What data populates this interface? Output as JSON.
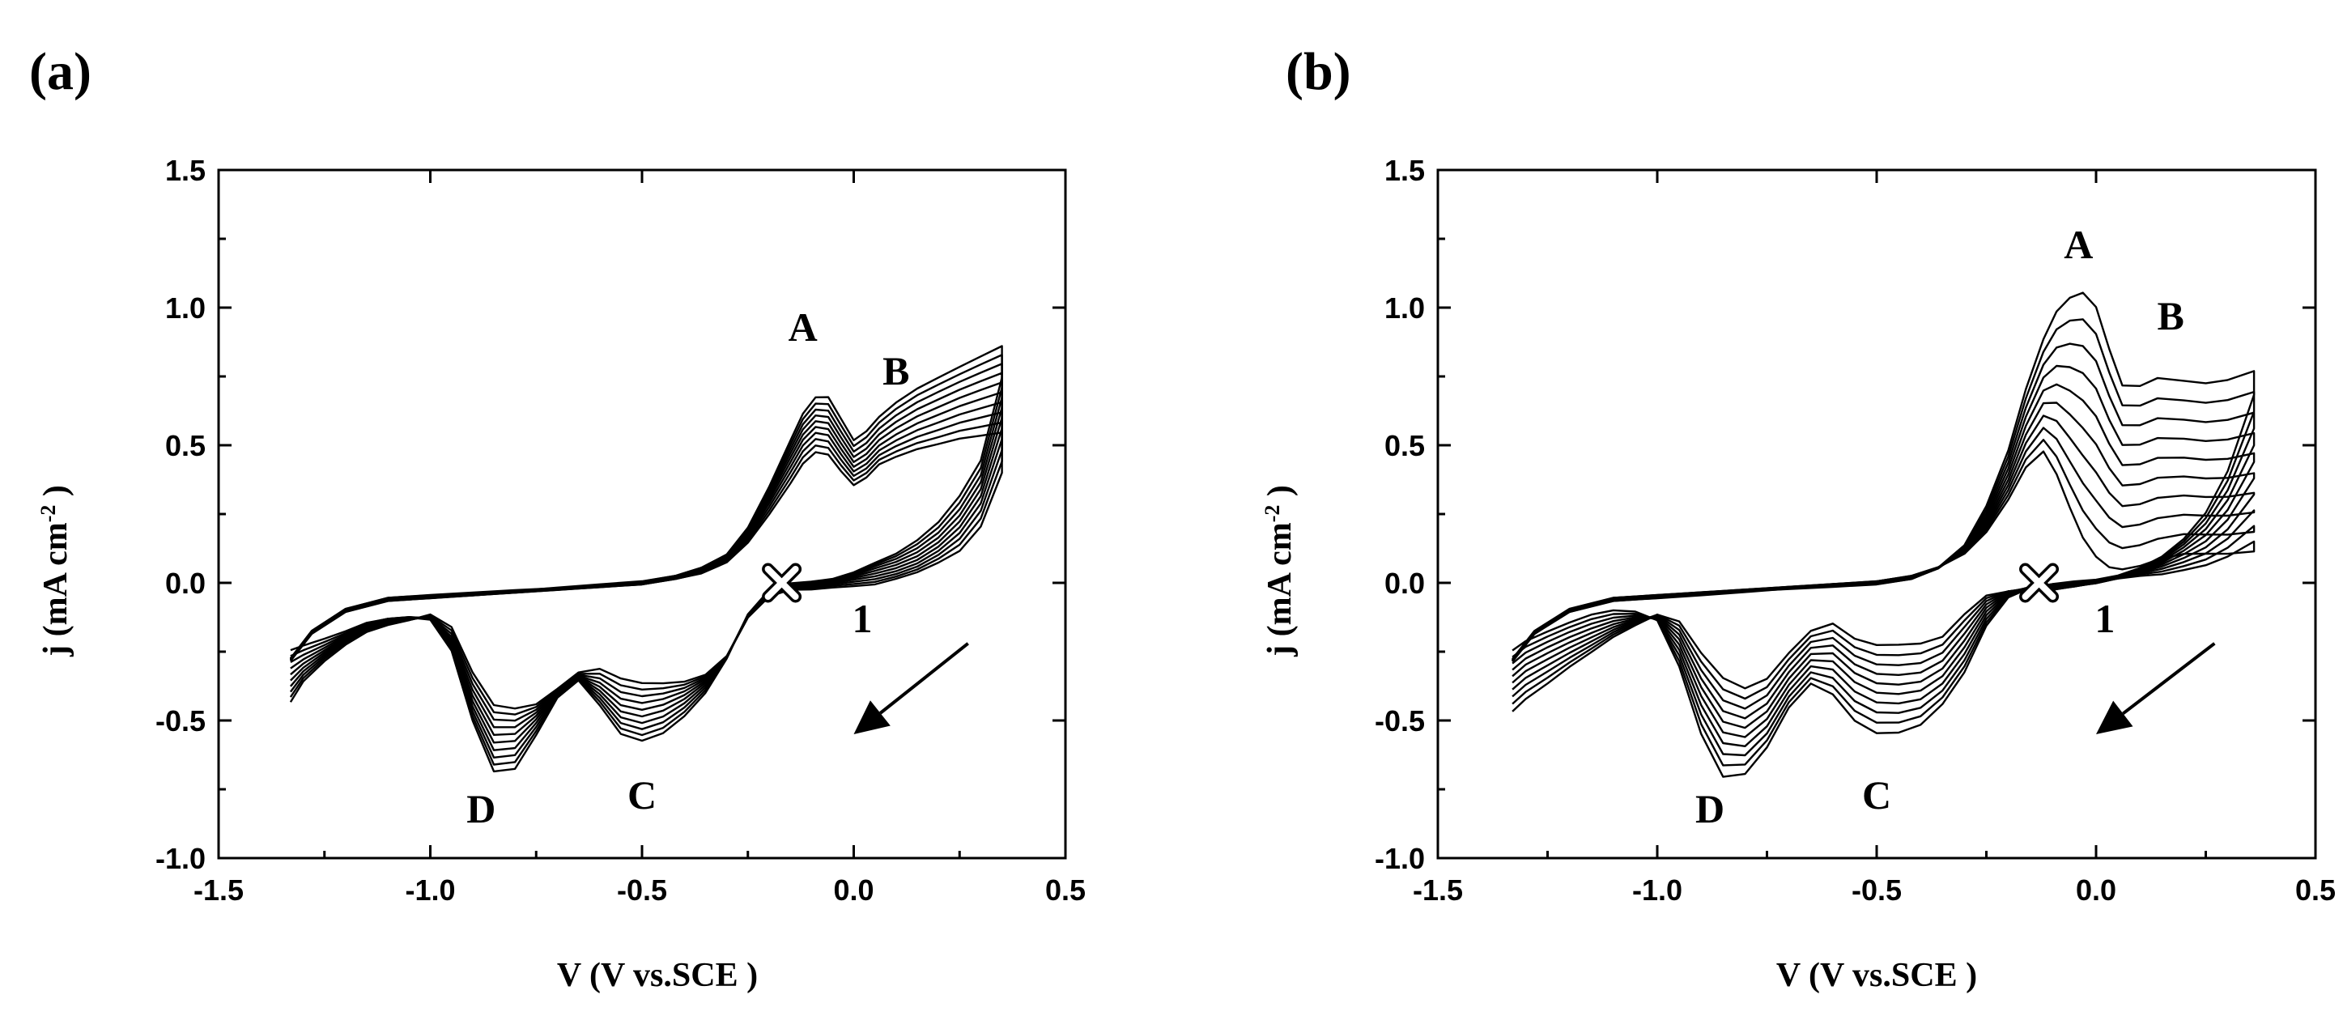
{
  "chart_data": [
    {
      "type": "line",
      "panel_label": "(a)",
      "xlabel": "V (V vs.SCE )",
      "ylabel": "j (mA cm-2 )",
      "ylabel_main": "j (mA cm",
      "ylabel_sup": "-2",
      "ylabel_end": " )",
      "xlim": [
        -1.5,
        0.5
      ],
      "ylim": [
        -1.0,
        1.5
      ],
      "xticks": [
        "-1.5",
        "-1.0",
        "-0.5",
        "0.0",
        "0.5"
      ],
      "yticks": [
        "1.5",
        "1.0",
        "0.5",
        "0.0",
        "-0.5",
        "-1.0"
      ],
      "cycles": 10,
      "start_potential": [
        -0.17,
        0.0
      ],
      "cycle_label": "1",
      "anodic_sweep": {
        "x": [
          -1.33,
          -1.28,
          -1.2,
          -1.1,
          -1.0,
          -0.9,
          -0.8,
          -0.7,
          -0.6,
          -0.5,
          -0.42,
          -0.36,
          -0.3,
          -0.25,
          -0.2,
          -0.15,
          -0.12,
          -0.09,
          -0.06,
          -0.03,
          0.0,
          0.03,
          0.06,
          0.1,
          0.15,
          0.2,
          0.25,
          0.3,
          0.35
        ],
        "first": [
          -0.28,
          -0.18,
          -0.1,
          -0.06,
          -0.05,
          -0.04,
          -0.03,
          -0.02,
          -0.01,
          0.0,
          0.02,
          0.04,
          0.08,
          0.15,
          0.25,
          0.36,
          0.43,
          0.47,
          0.46,
          0.4,
          0.35,
          0.38,
          0.43,
          0.46,
          0.49,
          0.51,
          0.53,
          0.54,
          0.55
        ],
        "last": [
          -0.28,
          -0.18,
          -0.1,
          -0.06,
          -0.05,
          -0.04,
          -0.03,
          -0.02,
          -0.01,
          0.0,
          0.02,
          0.05,
          0.1,
          0.2,
          0.35,
          0.52,
          0.62,
          0.68,
          0.68,
          0.6,
          0.52,
          0.55,
          0.6,
          0.65,
          0.7,
          0.74,
          0.78,
          0.82,
          0.86
        ]
      },
      "cathodic_sweep": {
        "x": [
          0.35,
          0.3,
          0.25,
          0.2,
          0.15,
          0.1,
          0.05,
          0.0,
          -0.05,
          -0.1,
          -0.15,
          -0.2,
          -0.25,
          -0.3,
          -0.35,
          -0.4,
          -0.45,
          -0.5,
          -0.55,
          -0.6,
          -0.65,
          -0.7,
          -0.75,
          -0.8,
          -0.85,
          -0.9,
          -0.95,
          -1.0,
          -1.05,
          -1.1,
          -1.15,
          -1.2,
          -1.25,
          -1.3,
          -1.33
        ],
        "first": [
          0.4,
          0.2,
          0.11,
          0.07,
          0.04,
          0.02,
          0.0,
          -0.01,
          -0.02,
          -0.03,
          -0.03,
          -0.05,
          -0.12,
          -0.26,
          -0.33,
          -0.36,
          -0.37,
          -0.37,
          -0.35,
          -0.31,
          -0.32,
          -0.38,
          -0.44,
          -0.46,
          -0.45,
          -0.33,
          -0.16,
          -0.11,
          -0.13,
          -0.15,
          -0.18,
          -0.23,
          -0.29,
          -0.36,
          -0.43
        ],
        "last": [
          0.75,
          0.45,
          0.32,
          0.22,
          0.15,
          0.1,
          0.07,
          0.04,
          0.02,
          0.01,
          0.0,
          -0.03,
          -0.12,
          -0.28,
          -0.4,
          -0.48,
          -0.54,
          -0.57,
          -0.55,
          -0.45,
          -0.36,
          -0.42,
          -0.55,
          -0.67,
          -0.68,
          -0.5,
          -0.25,
          -0.14,
          -0.13,
          -0.13,
          -0.14,
          -0.17,
          -0.2,
          -0.23,
          -0.25
        ]
      },
      "annotations": [
        {
          "text": "A",
          "x": -0.12,
          "y": 0.88
        },
        {
          "text": "B",
          "x": 0.1,
          "y": 0.72
        },
        {
          "text": "C",
          "x": -0.5,
          "y": -0.82
        },
        {
          "text": "D",
          "x": -0.88,
          "y": -0.87
        }
      ]
    },
    {
      "type": "line",
      "panel_label": "(b)",
      "xlabel": "V (V vs.SCE )",
      "ylabel": "j (mA cm-2 )",
      "ylabel_main": "j (mA cm",
      "ylabel_sup": "-2",
      "ylabel_end": " )",
      "xlim": [
        -1.5,
        0.5
      ],
      "ylim": [
        -1.0,
        1.5
      ],
      "xticks": [
        "-1.5",
        "-1.0",
        "-0.5",
        "0.0",
        "0.5"
      ],
      "yticks": [
        "1.5",
        "1.0",
        "0.5",
        "0.0",
        "-0.5",
        "-1.0"
      ],
      "cycles": 10,
      "start_potential": [
        -0.13,
        0.0
      ],
      "cycle_label": "1",
      "anodic_sweep": {
        "x": [
          -1.33,
          -1.28,
          -1.2,
          -1.1,
          -1.0,
          -0.9,
          -0.8,
          -0.7,
          -0.6,
          -0.5,
          -0.42,
          -0.36,
          -0.3,
          -0.25,
          -0.2,
          -0.16,
          -0.12,
          -0.09,
          -0.06,
          -0.03,
          0.0,
          0.03,
          0.06,
          0.1,
          0.14,
          0.2,
          0.25,
          0.3,
          0.36
        ],
        "first": [
          -0.28,
          -0.18,
          -0.1,
          -0.06,
          -0.05,
          -0.04,
          -0.03,
          -0.02,
          -0.01,
          0.0,
          0.02,
          0.05,
          0.1,
          0.18,
          0.3,
          0.42,
          0.48,
          0.4,
          0.28,
          0.17,
          0.1,
          0.06,
          0.05,
          0.06,
          0.08,
          0.1,
          0.1,
          0.1,
          0.11
        ],
        "last": [
          -0.28,
          -0.18,
          -0.1,
          -0.06,
          -0.05,
          -0.04,
          -0.03,
          -0.02,
          -0.01,
          0.0,
          0.02,
          0.06,
          0.14,
          0.28,
          0.48,
          0.7,
          0.88,
          0.98,
          1.03,
          1.05,
          1.0,
          0.85,
          0.72,
          0.72,
          0.75,
          0.74,
          0.73,
          0.74,
          0.77
        ]
      },
      "cathodic_sweep": {
        "x": [
          0.36,
          0.3,
          0.25,
          0.2,
          0.15,
          0.1,
          0.05,
          0.0,
          -0.05,
          -0.1,
          -0.15,
          -0.2,
          -0.25,
          -0.3,
          -0.35,
          -0.4,
          -0.45,
          -0.5,
          -0.55,
          -0.6,
          -0.65,
          -0.7,
          -0.75,
          -0.8,
          -0.85,
          -0.9,
          -0.95,
          -1.0,
          -1.05,
          -1.1,
          -1.15,
          -1.2,
          -1.25,
          -1.3,
          -1.33
        ],
        "first": [
          0.15,
          0.1,
          0.07,
          0.05,
          0.03,
          0.02,
          0.01,
          0.0,
          -0.01,
          -0.02,
          -0.02,
          -0.03,
          -0.05,
          -0.12,
          -0.2,
          -0.22,
          -0.22,
          -0.22,
          -0.2,
          -0.15,
          -0.18,
          -0.26,
          -0.35,
          -0.38,
          -0.34,
          -0.25,
          -0.14,
          -0.12,
          -0.16,
          -0.2,
          -0.25,
          -0.3,
          -0.36,
          -0.42,
          -0.47
        ],
        "last": [
          0.68,
          0.4,
          0.25,
          0.16,
          0.1,
          0.06,
          0.03,
          0.01,
          0.0,
          -0.01,
          -0.02,
          -0.05,
          -0.15,
          -0.32,
          -0.44,
          -0.52,
          -0.55,
          -0.55,
          -0.5,
          -0.4,
          -0.36,
          -0.45,
          -0.6,
          -0.7,
          -0.71,
          -0.55,
          -0.3,
          -0.13,
          -0.1,
          -0.1,
          -0.12,
          -0.15,
          -0.18,
          -0.21,
          -0.24
        ]
      },
      "annotations": [
        {
          "text": "A",
          "x": -0.04,
          "y": 1.18
        },
        {
          "text": "B",
          "x": 0.17,
          "y": 0.92
        },
        {
          "text": "C",
          "x": -0.5,
          "y": -0.82
        },
        {
          "text": "D",
          "x": -0.88,
          "y": -0.87
        }
      ]
    }
  ]
}
